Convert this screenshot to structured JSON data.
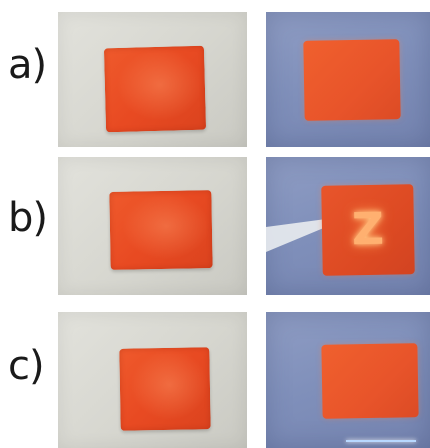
{
  "rows": [
    {
      "label": "a)"
    },
    {
      "label": "b)"
    },
    {
      "label": "c)"
    }
  ],
  "colors": {
    "sample": "#e84a22",
    "normal_background": "#d6d6cf",
    "uv_background": "#7f8fba",
    "fluorescence": "#ffb070"
  }
}
